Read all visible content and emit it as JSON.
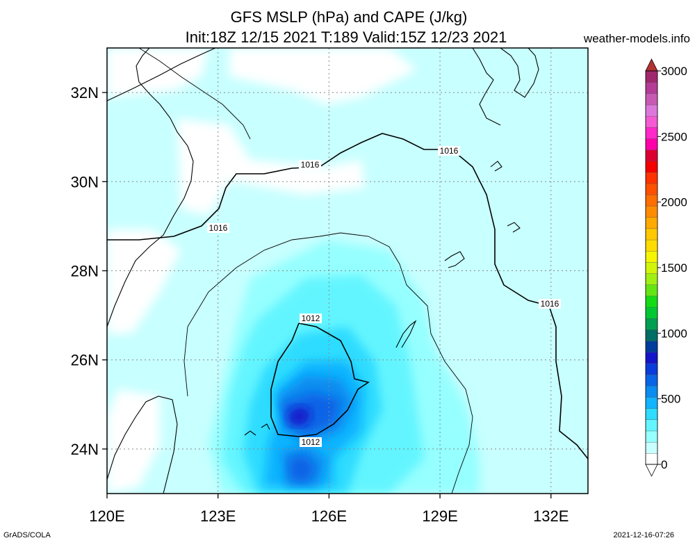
{
  "chart_data": {
    "type": "heatmap",
    "title_line1": "GFS MSLP (hPa) and CAPE (J/kg)",
    "title_line2": "Init:18Z 12/15 2021 T:189 Valid:15Z 12/23 2021",
    "site": "weather-models.info",
    "footer_left": "GrADS/COLA",
    "footer_right": "2021-12-16-07:26",
    "x_axis": {
      "min": 120,
      "max": 133,
      "ticks": [
        120,
        123,
        126,
        129,
        132
      ],
      "labels": [
        "120E",
        "123E",
        "126E",
        "129E",
        "132E"
      ]
    },
    "y_axis": {
      "min": 23,
      "max": 33,
      "ticks": [
        24,
        26,
        28,
        30,
        32
      ],
      "labels": [
        "24N",
        "26N",
        "28N",
        "30N",
        "32N"
      ]
    },
    "grid": true,
    "colorbar": {
      "ticks": [
        0,
        500,
        1000,
        1500,
        2000,
        2500,
        3000
      ],
      "tick_labels": [
        "0",
        "500",
        "1000",
        "1500",
        "2000",
        "2500",
        "3000"
      ],
      "colors": [
        "#ffffff",
        "#c8ffff",
        "#96ffff",
        "#64f5ff",
        "#2ddcff",
        "#10b4ff",
        "#0a8cf0",
        "#0a64e6",
        "#0a3cdc",
        "#1414c8",
        "#003c9b",
        "#006e64",
        "#00a050",
        "#00c832",
        "#14dc14",
        "#64e614",
        "#a0f014",
        "#d2f50a",
        "#f5f500",
        "#ffdc00",
        "#ffc800",
        "#ffaa00",
        "#ff8c00",
        "#ff6e00",
        "#ff5000",
        "#ff3200",
        "#f50000",
        "#dc0032",
        "#ff00aa",
        "#ff28c8",
        "#f55ad2",
        "#dc78dc",
        "#c85ab4",
        "#b43c96",
        "#a0286e"
      ],
      "top_color": "#b43232"
    },
    "contours": [
      {
        "label": "1016",
        "color": "#000000"
      },
      {
        "label": "1012",
        "color": "#000000"
      }
    ],
    "cape_centers": [
      {
        "lon": 125.3,
        "lat": 24.7,
        "value": 750
      },
      {
        "lon": 126.0,
        "lat": 25.2,
        "value": 550
      },
      {
        "lon": 125.2,
        "lat": 23.4,
        "value": 600
      }
    ]
  }
}
